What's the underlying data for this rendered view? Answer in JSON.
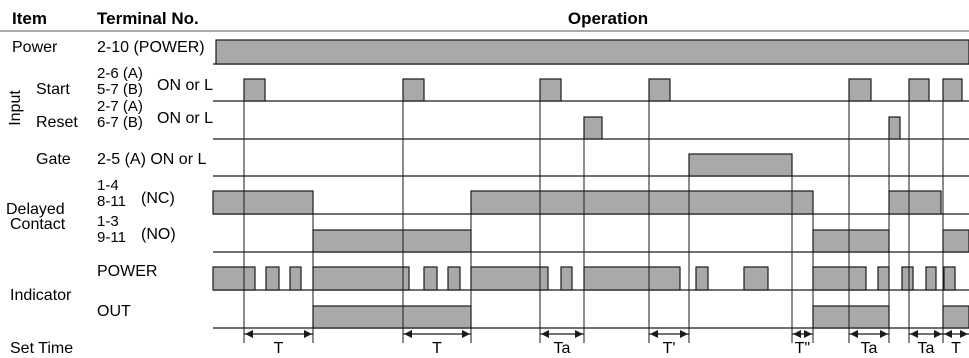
{
  "headers": {
    "item": "Item",
    "terminal": "Terminal No.",
    "operation": "Operation"
  },
  "rows": {
    "power": {
      "label": "Power",
      "terminal": "2-10 (POWER)"
    },
    "start": {
      "label": "Start",
      "terminal_top": "2-6 (A)",
      "terminal_bottom": "5-7 (B)",
      "state": "ON or L"
    },
    "reset": {
      "label": "Reset",
      "terminal_top": "2-7 (A)",
      "terminal_bottom": "6-7 (B)",
      "state": "ON or L"
    },
    "gate": {
      "label": "Gate",
      "terminal": "2-5 (A) ON or L"
    },
    "delayed_contact": {
      "label_line1": "Delayed",
      "label_line2": "Contact"
    },
    "nc": {
      "terminal_top": "1-4",
      "terminal_bottom": "8-11",
      "state": "(NC)"
    },
    "no": {
      "terminal_top": "1-3",
      "terminal_bottom": "9-11",
      "state": "(NO)"
    },
    "indicator": {
      "label": "Indicator",
      "power": "POWER",
      "out": "OUT"
    },
    "set_time": {
      "label": "Set Time"
    },
    "input_group": {
      "label": "Input"
    }
  },
  "time_labels": [
    "T",
    "T",
    "Ta",
    "T'",
    "T\"",
    "Ta",
    "Ta",
    "T"
  ]
}
